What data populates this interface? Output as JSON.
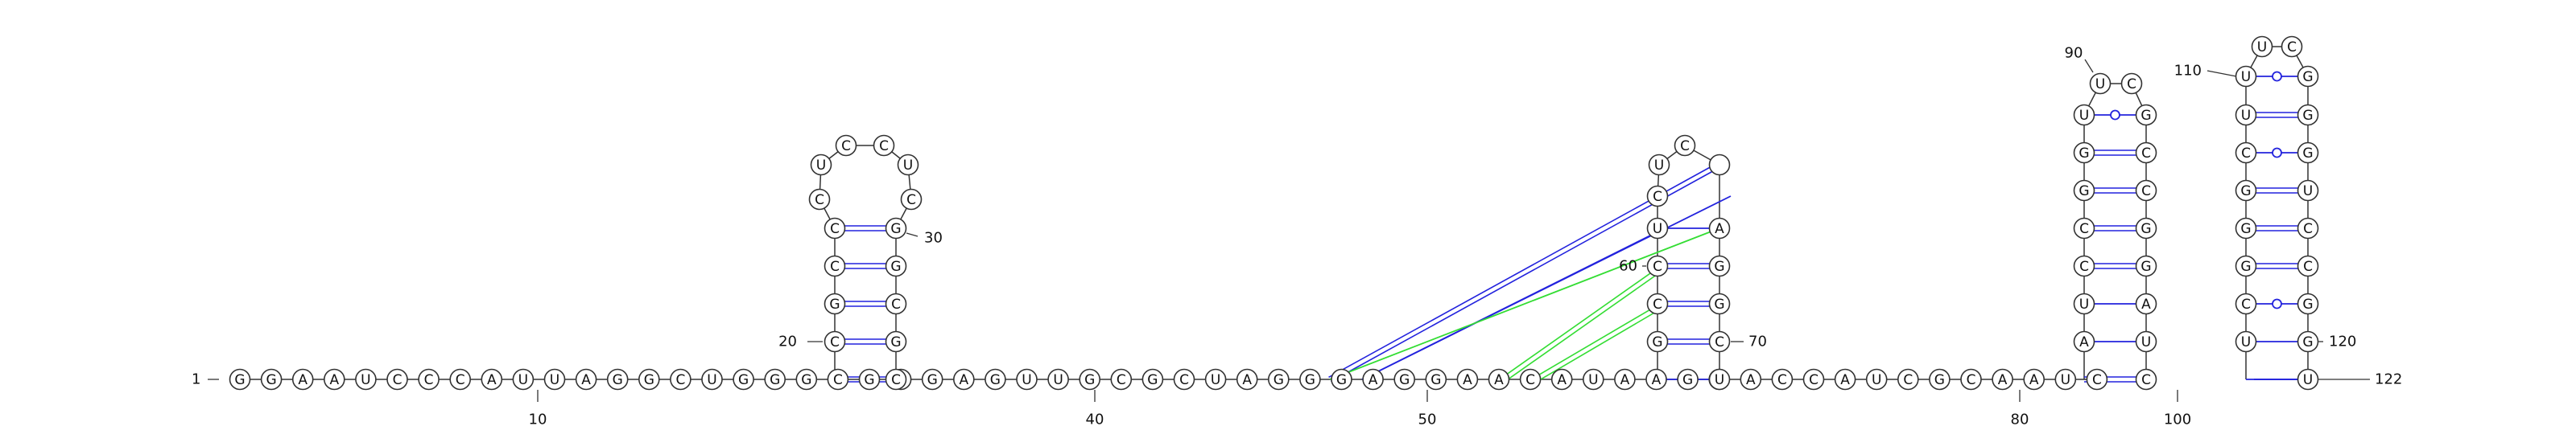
{
  "colors": {
    "backbone": "#333333",
    "watson_crick": "#2222dd",
    "gu_pair": "#2222dd",
    "pseudoknot": "#33dd33",
    "nucleotide_fill": "#ffffff"
  },
  "sequence": "GGAAUCCCAUUAGGCUGGGCGGGAGUUGCGCUAGGGAGGAACAUAAGGACCAUCGCAAUC",
  "number_labels": [
    "1",
    "10",
    "20",
    "30",
    "40",
    "50",
    "60",
    "70",
    "80",
    "90",
    "100",
    "110",
    "120",
    "122"
  ],
  "hairpin_1": {
    "left": [
      "C",
      "C",
      "G",
      "C",
      "C"
    ],
    "right": [
      "C",
      "G",
      "C",
      "G",
      "G"
    ],
    "loop": [
      "C",
      "U",
      "C",
      "C",
      "U",
      "C"
    ]
  },
  "hairpin_2": {
    "left": [
      "A",
      "G",
      "C",
      "C",
      "U",
      "U"
    ],
    "right": [
      "U",
      "C",
      "G",
      "G",
      "A",
      "U"
    ],
    "loop": [
      "C",
      "U",
      "C"
    ]
  },
  "hairpin_3": {
    "left": [
      "G",
      "A",
      "U",
      "C",
      "C",
      "G",
      "G",
      "U"
    ],
    "right": [
      "C",
      "U",
      "A",
      "G",
      "G",
      "C",
      "C",
      "G"
    ],
    "loop": [
      "U",
      "C"
    ]
  },
  "hairpin_4": {
    "left": [
      "A",
      "U",
      "C",
      "G",
      "G",
      "G",
      "C",
      "U"
    ],
    "right": [
      "U",
      "G",
      "G",
      "C",
      "C",
      "U",
      "G",
      "G"
    ],
    "loop": [
      "U",
      "C"
    ]
  }
}
